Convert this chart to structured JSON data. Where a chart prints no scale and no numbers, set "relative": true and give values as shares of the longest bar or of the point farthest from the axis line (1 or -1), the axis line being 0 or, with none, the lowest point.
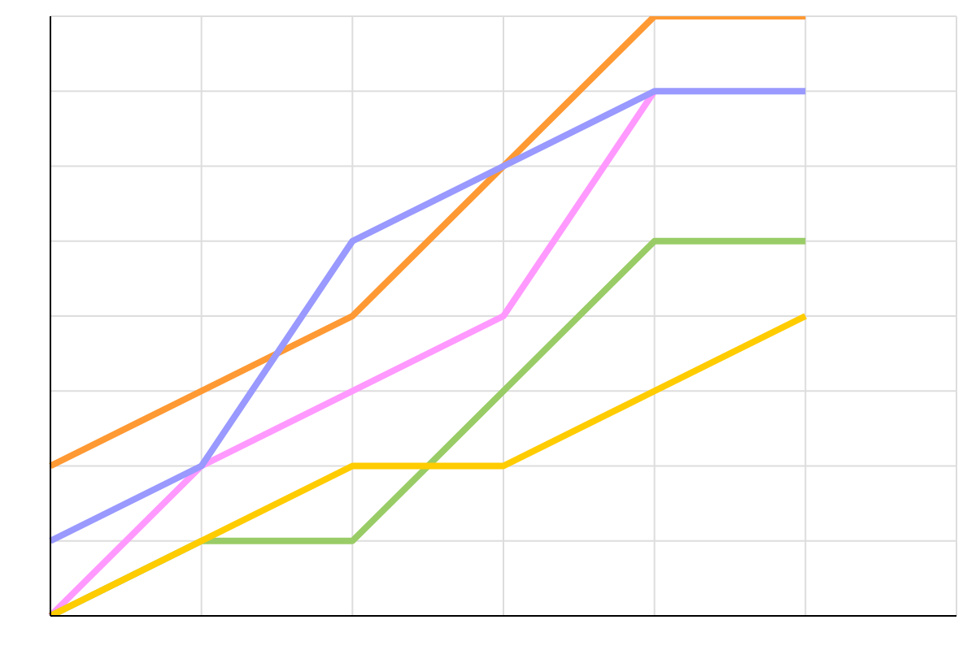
{
  "chart_data": {
    "type": "line",
    "relative": true,
    "grid": true,
    "marker": "none",
    "line_style": "solid",
    "categories": [
      null,
      null,
      null,
      null,
      null,
      null,
      null
    ],
    "series": [
      {
        "color": "#ff9933",
        "values": [
          0.25,
          0.375,
          0.5,
          0.75,
          1,
          1,
          null
        ]
      },
      {
        "color": "#ff99ff",
        "values": [
          0,
          0.25,
          0.375,
          0.5,
          0.875,
          null,
          null
        ]
      },
      {
        "color": "#9999ff",
        "values": [
          0.125,
          0.25,
          0.625,
          0.75,
          0.875,
          0.875,
          null
        ]
      },
      {
        "color": "#99cc66",
        "values": [
          0,
          0.125,
          0.125,
          0.375,
          0.625,
          0.625,
          null
        ]
      },
      {
        "color": "#ffcc00",
        "values": [
          0,
          0.125,
          0.25,
          0.25,
          0.375,
          0.5,
          null
        ]
      }
    ]
  }
}
